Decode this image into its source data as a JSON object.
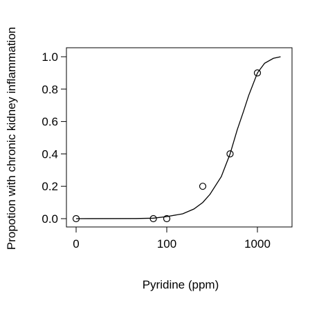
{
  "chart_data": {
    "type": "scatter",
    "title": "",
    "xlabel": "Pyridine (ppm)",
    "ylabel": "Propotion with chronic kidney inflammation",
    "x_scale": "log1p",
    "x_ticks": [
      0,
      100,
      1000
    ],
    "x_tick_labels": [
      "0",
      "100",
      "1000"
    ],
    "xlim": [
      0,
      2000
    ],
    "y_ticks": [
      0.0,
      0.2,
      0.4,
      0.6,
      0.8,
      1.0
    ],
    "y_tick_labels": [
      "0.0",
      "0.2",
      "0.4",
      "0.6",
      "0.8",
      "1.0"
    ],
    "ylim": [
      0.0,
      1.0
    ],
    "grid": false,
    "legend": "none",
    "series": [
      {
        "kind": "points",
        "marker": "open-circle",
        "x": [
          0,
          50,
          100,
          250,
          500,
          1000
        ],
        "y": [
          0.0,
          0.0,
          0.0,
          0.2,
          0.4,
          0.9
        ]
      },
      {
        "kind": "fitted-curve",
        "x": [
          0,
          20,
          50,
          100,
          150,
          200,
          250,
          300,
          400,
          500,
          600,
          700,
          800,
          1000,
          1200,
          1500,
          1800
        ],
        "y": [
          0.0,
          0.001,
          0.003,
          0.013,
          0.03,
          0.06,
          0.1,
          0.15,
          0.26,
          0.4,
          0.55,
          0.66,
          0.76,
          0.9,
          0.96,
          0.99,
          1.0
        ]
      }
    ]
  }
}
